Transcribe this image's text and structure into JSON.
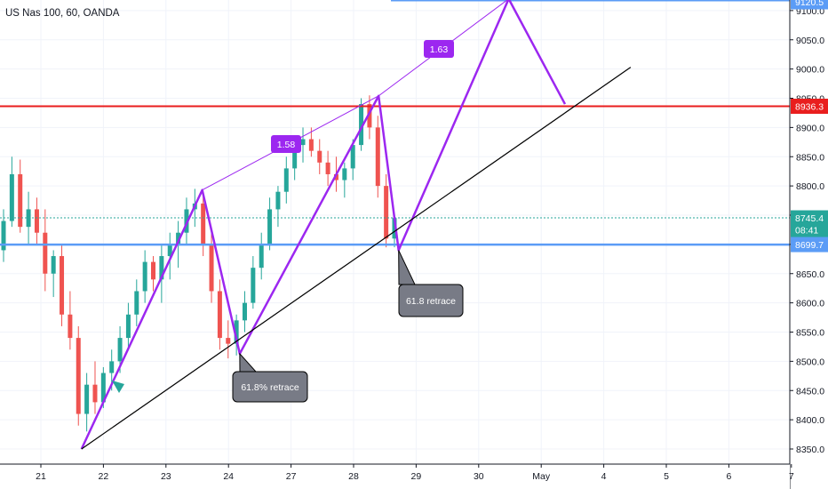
{
  "header": {
    "symbol_label": "US Nas 100, 60, OANDA"
  },
  "colors": {
    "bull": "#26a69a",
    "bear": "#ef5350",
    "purple": "#9c27f0",
    "red_line": "#e91e1e",
    "blue_line": "#5b9cf6",
    "black_line": "#000000",
    "grid": "#f0f3fa",
    "callout": "#787b86"
  },
  "chart_data": {
    "type": "candlestick",
    "symbol": "US Nas 100",
    "timeframe": "60",
    "source": "OANDA",
    "x_ticks": [
      "21",
      "22",
      "23",
      "24",
      "27",
      "28",
      "29",
      "30",
      "May",
      "4",
      "5",
      "6",
      "7"
    ],
    "y_ticks": [
      8350,
      8400,
      8450,
      8500,
      8550,
      8600,
      8650,
      8700,
      8750,
      8800,
      8850,
      8900,
      8950,
      9000,
      9050,
      9100
    ],
    "ylim": [
      8330,
      9125
    ],
    "price_labels": [
      {
        "id": "top_level",
        "text": "9120.5",
        "value": 9120.5,
        "color": "#5b9cf6"
      },
      {
        "id": "resistance",
        "text": "8936.3",
        "value": 8936.3,
        "color": "#e91e1e"
      },
      {
        "id": "last_price",
        "text": "8745.4",
        "value": 8745.4,
        "color": "#26a69a"
      },
      {
        "id": "countdown",
        "text": "08:41",
        "value": 8725,
        "color": "#26a69a"
      },
      {
        "id": "support",
        "text": "8699.7",
        "value": 8699.7,
        "color": "#5b9cf6"
      }
    ],
    "horizontal_lines": [
      {
        "name": "resistance",
        "value": 8936.3
      },
      {
        "name": "support",
        "value": 8699.7
      },
      {
        "name": "last_price",
        "value": 8745.4
      }
    ],
    "pattern_points": [
      {
        "label": "low 21 Apr",
        "date_index": 0.65,
        "value": 8350
      },
      {
        "label": "high 23 Apr",
        "date_index": 2.58,
        "value": 8793
      },
      {
        "label": "low 24 Apr",
        "date_index": 3.18,
        "value": 8513
      },
      {
        "label": "high 28 Apr",
        "date_index": 5.4,
        "value": 8954
      },
      {
        "label": "low 28 Apr",
        "date_index": 5.72,
        "value": 8690
      },
      {
        "label": "projected high",
        "date_index": 7.48,
        "value": 9120
      },
      {
        "label": "projected pullback",
        "date_index": 8.38,
        "value": 8940
      }
    ],
    "trendline": [
      {
        "date_index": 0.65,
        "value": 8350
      },
      {
        "date_index": 9.43,
        "value": 9003
      }
    ],
    "ratio_labels": [
      {
        "text": "1.58"
      },
      {
        "text": "1.63"
      }
    ],
    "annotations": [
      {
        "text": "61.8%  retrace"
      },
      {
        "text": "61.8 retrace"
      }
    ],
    "candles": [
      [
        8690,
        8760,
        8670,
        8740
      ],
      [
        8740,
        8850,
        8730,
        8820
      ],
      [
        8820,
        8845,
        8720,
        8730
      ],
      [
        8730,
        8790,
        8700,
        8760
      ],
      [
        8760,
        8780,
        8700,
        8720
      ],
      [
        8720,
        8760,
        8620,
        8650
      ],
      [
        8650,
        8690,
        8610,
        8680
      ],
      [
        8680,
        8700,
        8560,
        8580
      ],
      [
        8580,
        8620,
        8520,
        8540
      ],
      [
        8540,
        8560,
        8390,
        8410
      ],
      [
        8410,
        8480,
        8380,
        8460
      ],
      [
        8460,
        8500,
        8410,
        8430
      ],
      [
        8430,
        8490,
        8420,
        8480
      ],
      [
        8480,
        8520,
        8450,
        8500
      ],
      [
        8500,
        8560,
        8480,
        8540
      ],
      [
        8540,
        8600,
        8520,
        8580
      ],
      [
        8580,
        8640,
        8560,
        8620
      ],
      [
        8620,
        8690,
        8600,
        8670
      ],
      [
        8670,
        8680,
        8620,
        8640
      ],
      [
        8640,
        8700,
        8600,
        8680
      ],
      [
        8680,
        8720,
        8640,
        8700
      ],
      [
        8700,
        8740,
        8660,
        8720
      ],
      [
        8720,
        8780,
        8700,
        8760
      ],
      [
        8760,
        8795,
        8730,
        8770
      ],
      [
        8770,
        8790,
        8680,
        8700
      ],
      [
        8700,
        8720,
        8600,
        8620
      ],
      [
        8620,
        8640,
        8520,
        8540
      ],
      [
        8540,
        8570,
        8505,
        8530
      ],
      [
        8530,
        8580,
        8510,
        8570
      ],
      [
        8570,
        8620,
        8550,
        8600
      ],
      [
        8600,
        8680,
        8590,
        8660
      ],
      [
        8660,
        8720,
        8640,
        8700
      ],
      [
        8700,
        8780,
        8690,
        8760
      ],
      [
        8760,
        8800,
        8730,
        8790
      ],
      [
        8790,
        8850,
        8770,
        8830
      ],
      [
        8830,
        8880,
        8810,
        8870
      ],
      [
        8870,
        8900,
        8840,
        8880
      ],
      [
        8880,
        8900,
        8850,
        8860
      ],
      [
        8860,
        8880,
        8820,
        8840
      ],
      [
        8840,
        8860,
        8800,
        8820
      ],
      [
        8820,
        8850,
        8790,
        8810
      ],
      [
        8810,
        8840,
        8780,
        8830
      ],
      [
        8830,
        8880,
        8810,
        8870
      ],
      [
        8870,
        8950,
        8860,
        8940
      ],
      [
        8940,
        8955,
        8880,
        8900
      ],
      [
        8900,
        8920,
        8780,
        8800
      ],
      [
        8800,
        8820,
        8695,
        8710
      ],
      [
        8710,
        8750,
        8695,
        8745
      ]
    ]
  }
}
